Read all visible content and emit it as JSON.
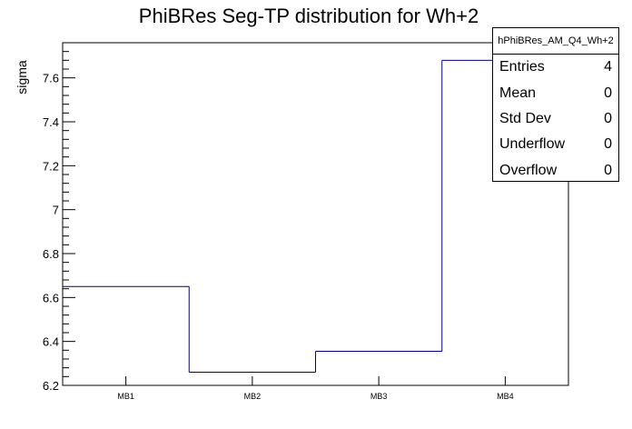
{
  "chart_data": {
    "type": "bar",
    "style": "histogram-step",
    "title": "PhiBRes Seg-TP distribution for Wh+2",
    "xlabel": "",
    "ylabel": "sigma",
    "categories": [
      "MB1",
      "MB2",
      "MB3",
      "MB4"
    ],
    "values": [
      6.65,
      6.26,
      6.355,
      7.68
    ],
    "ylim": [
      6.2,
      7.76
    ],
    "yticks": [
      "6.2",
      "6.4",
      "6.6",
      "6.8",
      "7",
      "7.2",
      "7.4",
      "7.6"
    ],
    "line_color": "#000080",
    "legend_position": "top-right"
  },
  "stats": {
    "name": "hPhiBRes_AM_Q4_Wh+2",
    "rows": [
      {
        "label": "Entries",
        "value": "4"
      },
      {
        "label": "Mean",
        "value": "0"
      },
      {
        "label": "Std Dev",
        "value": "0"
      },
      {
        "label": "Underflow",
        "value": "0"
      },
      {
        "label": "Overflow",
        "value": "0"
      }
    ]
  }
}
